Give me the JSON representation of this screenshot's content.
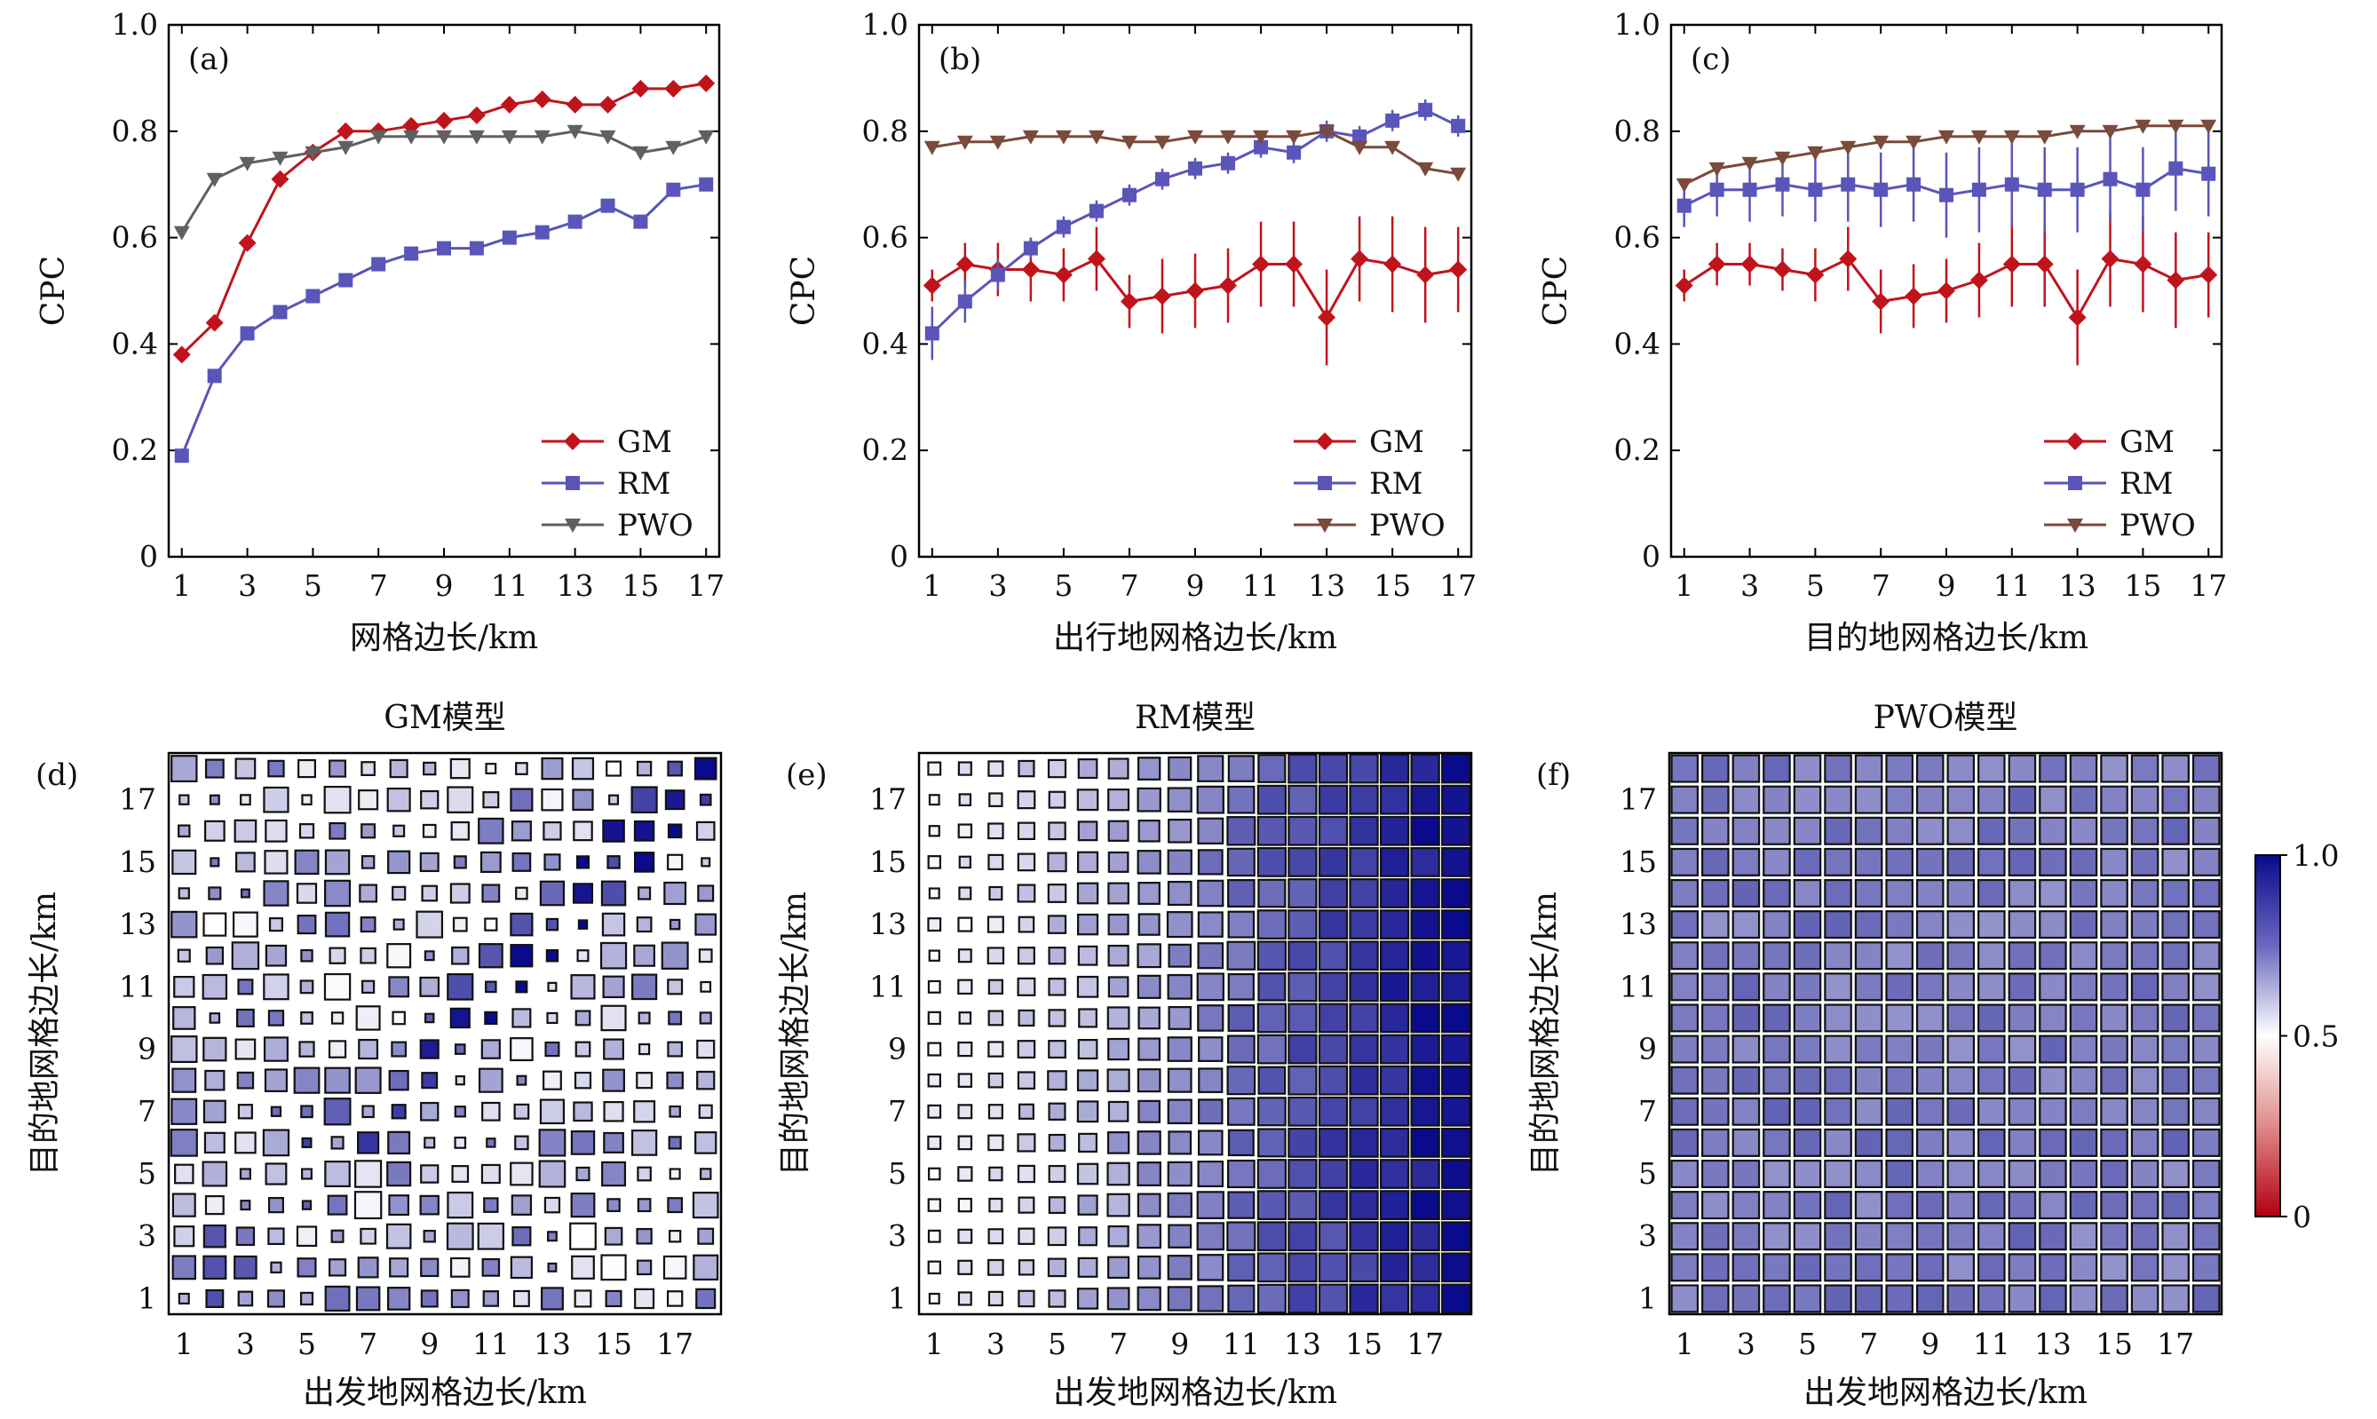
{
  "chart_data": [
    {
      "panel": "(a)",
      "type": "line",
      "xlabel": "网格边长/km",
      "ylabel": "CPC",
      "x_ticks": [
        1,
        3,
        5,
        7,
        9,
        11,
        13,
        15,
        17
      ],
      "y_ticks": [
        "0",
        "0.2",
        "0.4",
        "0.6",
        "0.8",
        "1.0"
      ],
      "xlim": [
        0.6,
        17.4
      ],
      "ylim": [
        0,
        1.0
      ],
      "legend_position": "bottom-right",
      "x": [
        1,
        2,
        3,
        4,
        5,
        6,
        7,
        8,
        9,
        10,
        11,
        12,
        13,
        14,
        15,
        16,
        17
      ],
      "series": [
        {
          "name": "GM",
          "color": "#c0141c",
          "marker": "diamond",
          "values": [
            0.38,
            0.44,
            0.59,
            0.71,
            0.76,
            0.8,
            0.8,
            0.81,
            0.82,
            0.83,
            0.85,
            0.86,
            0.85,
            0.85,
            0.88,
            0.88,
            0.89
          ]
        },
        {
          "name": "RM",
          "color": "#5a55b8",
          "marker": "square",
          "values": [
            0.19,
            0.34,
            0.42,
            0.46,
            0.49,
            0.52,
            0.55,
            0.57,
            0.58,
            0.58,
            0.6,
            0.61,
            0.63,
            0.66,
            0.63,
            0.69,
            0.7
          ]
        },
        {
          "name": "PWO",
          "color": "#606060",
          "marker": "triangle-down",
          "values": [
            0.61,
            0.71,
            0.74,
            0.75,
            0.76,
            0.77,
            0.79,
            0.79,
            0.79,
            0.79,
            0.79,
            0.79,
            0.8,
            0.79,
            0.76,
            0.77,
            0.79
          ]
        }
      ]
    },
    {
      "panel": "(b)",
      "type": "line",
      "xlabel": "出行地网格边长/km",
      "ylabel": "CPC",
      "x_ticks": [
        1,
        3,
        5,
        7,
        9,
        11,
        13,
        15,
        17
      ],
      "y_ticks": [
        "0",
        "0.2",
        "0.4",
        "0.6",
        "0.8",
        "1.0"
      ],
      "xlim": [
        0.6,
        17.4
      ],
      "ylim": [
        0,
        1.0
      ],
      "legend_position": "bottom-right",
      "x": [
        1,
        2,
        3,
        4,
        5,
        6,
        7,
        8,
        9,
        10,
        11,
        12,
        13,
        14,
        15,
        16,
        17
      ],
      "series": [
        {
          "name": "GM",
          "color": "#c0141c",
          "marker": "diamond",
          "values": [
            0.51,
            0.55,
            0.54,
            0.54,
            0.53,
            0.56,
            0.48,
            0.49,
            0.5,
            0.51,
            0.55,
            0.55,
            0.45,
            0.56,
            0.55,
            0.53,
            0.54
          ],
          "error": [
            0.03,
            0.04,
            0.05,
            0.06,
            0.05,
            0.06,
            0.05,
            0.07,
            0.07,
            0.07,
            0.08,
            0.08,
            0.09,
            0.08,
            0.09,
            0.09,
            0.08
          ]
        },
        {
          "name": "RM",
          "color": "#5a55b8",
          "marker": "square",
          "values": [
            0.42,
            0.48,
            0.53,
            0.58,
            0.62,
            0.65,
            0.68,
            0.71,
            0.73,
            0.74,
            0.77,
            0.76,
            0.8,
            0.79,
            0.82,
            0.84,
            0.81
          ],
          "error": [
            0.05,
            0.04,
            0.03,
            0.02,
            0.02,
            0.02,
            0.02,
            0.02,
            0.02,
            0.02,
            0.02,
            0.02,
            0.02,
            0.02,
            0.02,
            0.02,
            0.02
          ]
        },
        {
          "name": "PWO",
          "color": "#7a4a3a",
          "marker": "triangle-down",
          "values": [
            0.77,
            0.78,
            0.78,
            0.79,
            0.79,
            0.79,
            0.78,
            0.78,
            0.79,
            0.79,
            0.79,
            0.79,
            0.8,
            0.77,
            0.77,
            0.73,
            0.72
          ]
        }
      ]
    },
    {
      "panel": "(c)",
      "type": "line",
      "xlabel": "目的地网格边长/km",
      "ylabel": "CPC",
      "x_ticks": [
        1,
        3,
        5,
        7,
        9,
        11,
        13,
        15,
        17
      ],
      "y_ticks": [
        "0",
        "0.2",
        "0.4",
        "0.6",
        "0.8",
        "1.0"
      ],
      "xlim": [
        0.6,
        17.4
      ],
      "ylim": [
        0,
        1.0
      ],
      "legend_position": "bottom-right",
      "x": [
        1,
        2,
        3,
        4,
        5,
        6,
        7,
        8,
        9,
        10,
        11,
        12,
        13,
        14,
        15,
        16,
        17
      ],
      "series": [
        {
          "name": "GM",
          "color": "#c0141c",
          "marker": "diamond",
          "values": [
            0.51,
            0.55,
            0.55,
            0.54,
            0.53,
            0.56,
            0.48,
            0.49,
            0.5,
            0.52,
            0.55,
            0.55,
            0.45,
            0.56,
            0.55,
            0.52,
            0.53
          ],
          "error": [
            0.03,
            0.04,
            0.04,
            0.04,
            0.05,
            0.06,
            0.06,
            0.06,
            0.06,
            0.07,
            0.08,
            0.08,
            0.09,
            0.09,
            0.09,
            0.09,
            0.08
          ]
        },
        {
          "name": "RM",
          "color": "#5a55b8",
          "marker": "square",
          "values": [
            0.66,
            0.69,
            0.69,
            0.7,
            0.69,
            0.7,
            0.69,
            0.7,
            0.68,
            0.69,
            0.7,
            0.69,
            0.69,
            0.71,
            0.69,
            0.73,
            0.72
          ],
          "error": [
            0.04,
            0.05,
            0.06,
            0.06,
            0.06,
            0.07,
            0.07,
            0.07,
            0.08,
            0.08,
            0.08,
            0.08,
            0.08,
            0.08,
            0.08,
            0.08,
            0.08
          ]
        },
        {
          "name": "PWO",
          "color": "#7a4a3a",
          "marker": "triangle-down",
          "values": [
            0.7,
            0.73,
            0.74,
            0.75,
            0.76,
            0.77,
            0.78,
            0.78,
            0.79,
            0.79,
            0.79,
            0.79,
            0.8,
            0.8,
            0.81,
            0.81,
            0.81
          ]
        }
      ]
    },
    {
      "panel": "(d)",
      "type": "heatmap",
      "title": "GM模型",
      "xlabel": "出发地网格边长/km",
      "ylabel": "目的地网格边长/km",
      "x_ticks": [
        1,
        3,
        5,
        7,
        9,
        11,
        13,
        15,
        17
      ],
      "y_ticks": [
        1,
        3,
        5,
        7,
        9,
        11,
        13,
        15,
        17
      ],
      "grid_size": 18,
      "value_scale": [
        0,
        1.0
      ],
      "model": "GM"
    },
    {
      "panel": "(e)",
      "type": "heatmap",
      "title": "RM模型",
      "xlabel": "出发地网格边长/km",
      "ylabel": "目的地网格边长/km",
      "x_ticks": [
        1,
        3,
        5,
        7,
        9,
        11,
        13,
        15,
        17
      ],
      "y_ticks": [
        1,
        3,
        5,
        7,
        9,
        11,
        13,
        15,
        17
      ],
      "grid_size": 18,
      "value_scale": [
        0,
        1.0
      ],
      "model": "RM"
    },
    {
      "panel": "(f)",
      "type": "heatmap",
      "title": "PWO模型",
      "xlabel": "出发地网格边长/km",
      "ylabel": "目的地网格边长/km",
      "x_ticks": [
        1,
        3,
        5,
        7,
        9,
        11,
        13,
        15,
        17
      ],
      "y_ticks": [
        1,
        3,
        5,
        7,
        9,
        11,
        13,
        15,
        17
      ],
      "grid_size": 18,
      "value_scale": [
        0,
        1.0
      ],
      "model": "PWO"
    }
  ],
  "colorbar": {
    "tick_labels": [
      "1.0",
      "0.5",
      "0"
    ],
    "colors": [
      "#0a0a8a",
      "#ffffff",
      "#b00010"
    ]
  }
}
